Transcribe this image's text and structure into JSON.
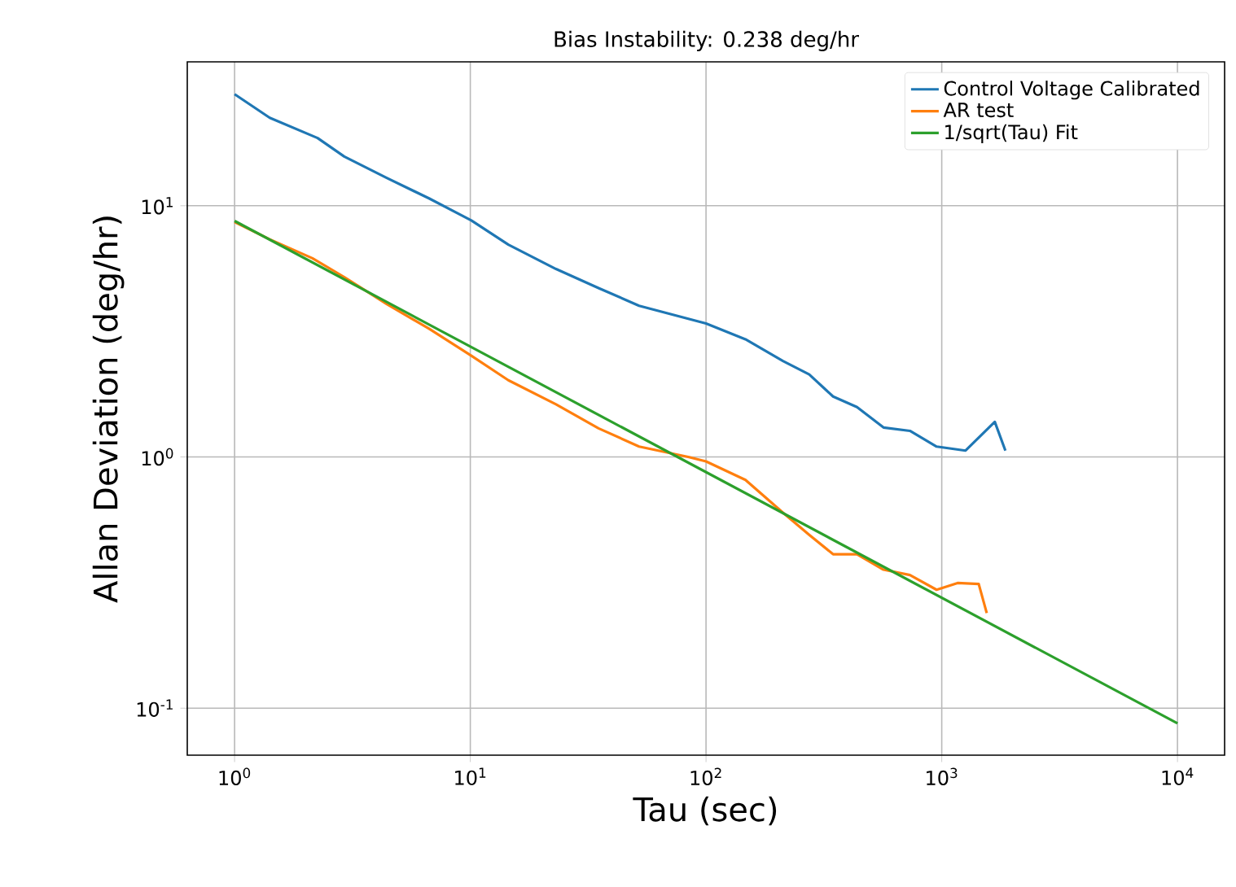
{
  "chart_data": {
    "type": "line",
    "title": "Bias Instability: 0.238 deg/hr",
    "xlabel": "Tau (sec)",
    "ylabel": "Allan Deviation (deg/hr)",
    "log": "xy",
    "grid": true,
    "legend": "top right",
    "xlim": [
      0.63,
      15849
    ],
    "ylim": [
      0.065,
      37.4
    ],
    "xticks": [
      {
        "value": 1,
        "label": "10$^{0}$"
      },
      {
        "value": 10,
        "label": "10$^{1}$"
      },
      {
        "value": 100,
        "label": "10$^{2}$"
      },
      {
        "value": 1000,
        "label": "10$^{3}$"
      },
      {
        "value": 10000,
        "label": "10$^{4}$"
      }
    ],
    "yticks": [
      {
        "value": 0.1,
        "label": "10$^{-1}$"
      },
      {
        "value": 1,
        "label": "10$^{0}$"
      },
      {
        "value": 10,
        "label": "10$^{1}$"
      }
    ],
    "series": [
      {
        "name": "Control Voltage Calibrated",
        "color": "#1f77b4",
        "x": [
          1,
          1.41,
          2.25,
          2.92,
          4.42,
          6.68,
          10.1,
          14.5,
          23.1,
          35,
          52,
          100,
          147,
          212,
          274,
          346,
          437,
          566,
          733,
          951,
          1262,
          1679,
          1862
        ],
        "values": [
          27.8,
          22.4,
          18.6,
          15.7,
          12.9,
          10.7,
          8.74,
          7.0,
          5.6,
          4.7,
          4.0,
          3.4,
          2.94,
          2.41,
          2.13,
          1.74,
          1.58,
          1.31,
          1.27,
          1.1,
          1.06,
          1.38,
          1.06
        ]
      },
      {
        "name": "AR test",
        "color": "#ff7f0e",
        "x": [
          1,
          1.41,
          2.14,
          2.92,
          4.42,
          6.68,
          10.1,
          14.5,
          23.1,
          35,
          52,
          84,
          100,
          147,
          212,
          274,
          346,
          437,
          566,
          733,
          951,
          1167,
          1435,
          1552
        ],
        "values": [
          8.62,
          7.35,
          6.18,
          5.2,
          4.06,
          3.24,
          2.53,
          2.02,
          1.62,
          1.3,
          1.1,
          1.0,
          0.96,
          0.81,
          0.6,
          0.49,
          0.41,
          0.41,
          0.356,
          0.339,
          0.296,
          0.315,
          0.312,
          0.239
        ]
      },
      {
        "name": "1/sqrt(Tau) Fit",
        "color": "#2ca02c",
        "x": [
          1,
          10000
        ],
        "values": [
          8.7,
          0.087
        ]
      }
    ]
  }
}
